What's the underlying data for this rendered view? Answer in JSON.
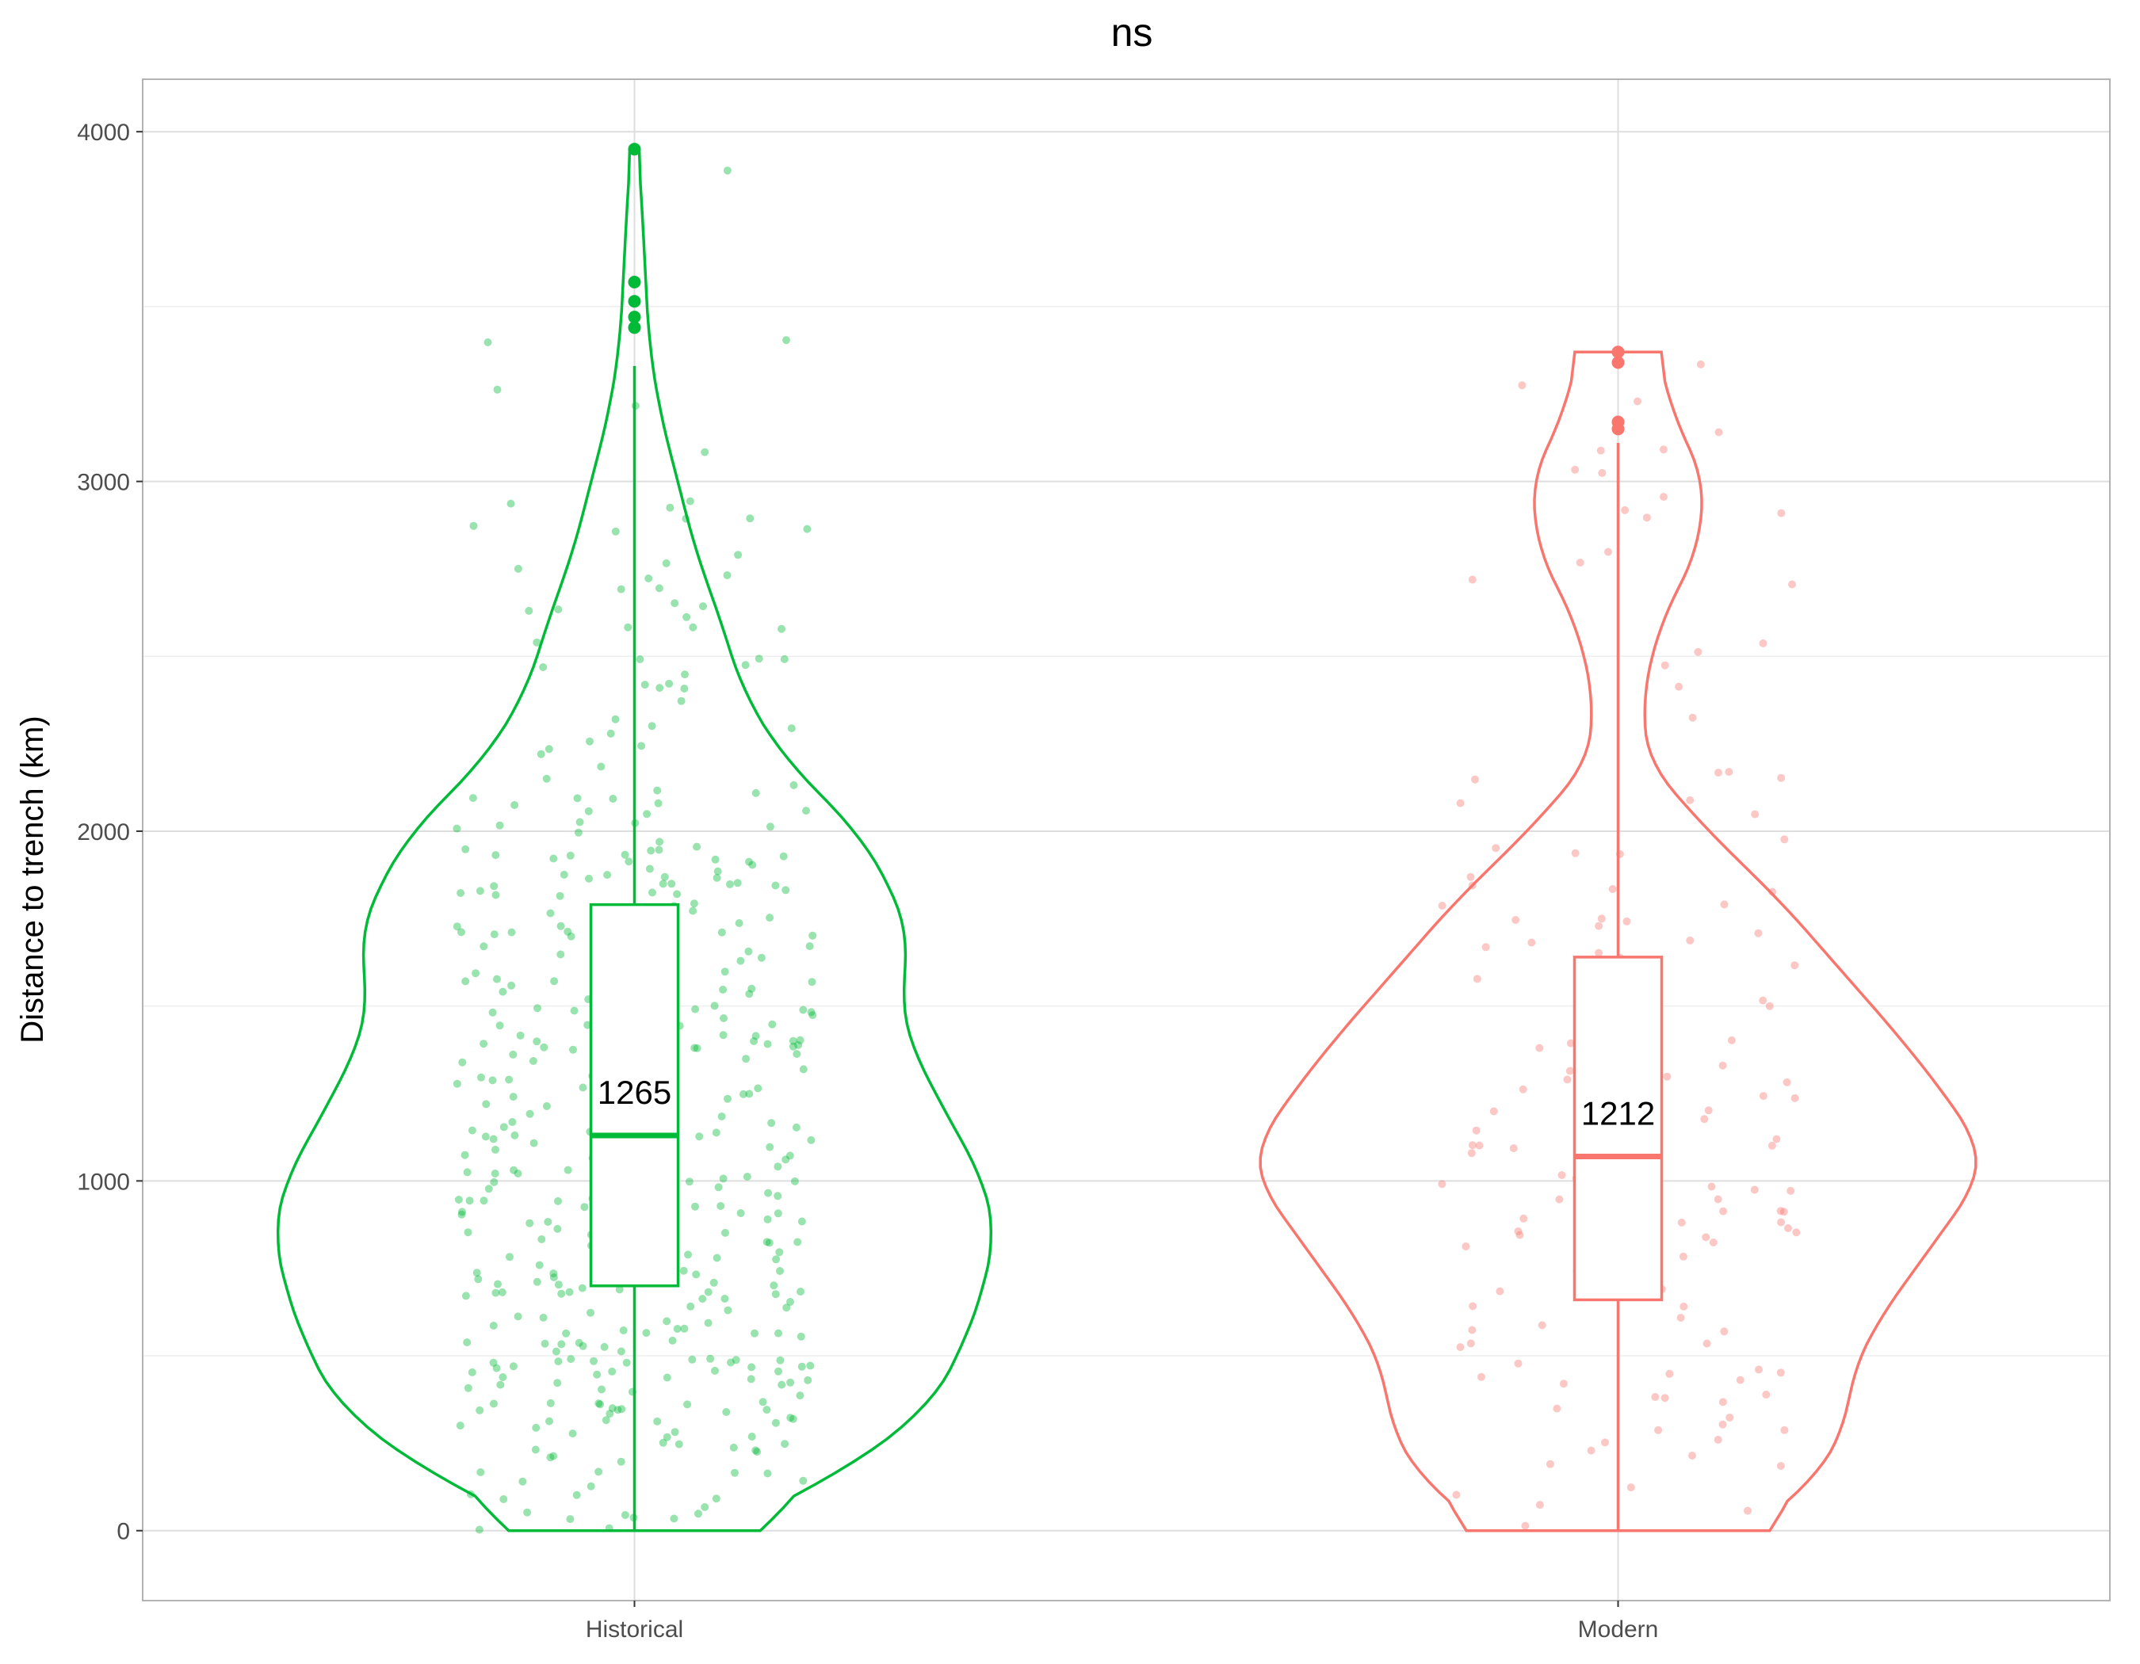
{
  "chart_data": {
    "type": "violin",
    "title": "ns",
    "xlabel": "",
    "ylabel": "Distance to trench (km)",
    "ylim": [
      -200,
      4150
    ],
    "yticks": [
      0,
      1000,
      2000,
      3000,
      4000
    ],
    "ytick_labels": [
      "0",
      "1000",
      "2000",
      "3000",
      "4000"
    ],
    "grid": true,
    "categories": [
      "Historical",
      "Modern"
    ],
    "series": [
      {
        "category": "Historical",
        "color": "#00ba38",
        "n_points": 420,
        "violin_min": 0,
        "violin_max": 3950,
        "box": {
          "q1": 700,
          "median": 1130,
          "q3": 1790,
          "whisker_low": 0,
          "whisker_high": 3330
        },
        "mean_label": "1265",
        "outliers": [
          3950,
          3570,
          3515,
          3470,
          3440
        ],
        "density_profile": [
          [
            0,
            0.25
          ],
          [
            150,
            0.55
          ],
          [
            350,
            0.82
          ],
          [
            550,
            0.92
          ],
          [
            700,
            0.97
          ],
          [
            850,
            1.0
          ],
          [
            1000,
            0.97
          ],
          [
            1200,
            0.86
          ],
          [
            1400,
            0.76
          ],
          [
            1500,
            0.74
          ],
          [
            1600,
            0.75
          ],
          [
            1700,
            0.76
          ],
          [
            1800,
            0.73
          ],
          [
            2000,
            0.62
          ],
          [
            2200,
            0.42
          ],
          [
            2400,
            0.3
          ],
          [
            2600,
            0.24
          ],
          [
            2800,
            0.17
          ],
          [
            3000,
            0.12
          ],
          [
            3200,
            0.07
          ],
          [
            3400,
            0.04
          ],
          [
            3600,
            0.03
          ],
          [
            3800,
            0.02
          ],
          [
            3950,
            0.01
          ]
        ]
      },
      {
        "category": "Modern",
        "color": "#f8766d",
        "n_points": 150,
        "violin_min": 0,
        "violin_max": 3370,
        "box": {
          "q1": 660,
          "median": 1070,
          "q3": 1640,
          "whisker_low": 0,
          "whisker_high": 3110
        },
        "mean_label": "1212",
        "outliers": [
          3370,
          3340,
          3170,
          3150
        ],
        "density_profile": [
          [
            0,
            0.37
          ],
          [
            150,
            0.55
          ],
          [
            300,
            0.63
          ],
          [
            450,
            0.65
          ],
          [
            600,
            0.72
          ],
          [
            800,
            0.86
          ],
          [
            1000,
            1.0
          ],
          [
            1100,
            1.0
          ],
          [
            1200,
            0.94
          ],
          [
            1400,
            0.79
          ],
          [
            1600,
            0.62
          ],
          [
            1800,
            0.45
          ],
          [
            2000,
            0.25
          ],
          [
            2200,
            0.08
          ],
          [
            2400,
            0.07
          ],
          [
            2600,
            0.12
          ],
          [
            2800,
            0.22
          ],
          [
            3000,
            0.24
          ],
          [
            3200,
            0.15
          ],
          [
            3370,
            0.11
          ]
        ]
      }
    ]
  }
}
